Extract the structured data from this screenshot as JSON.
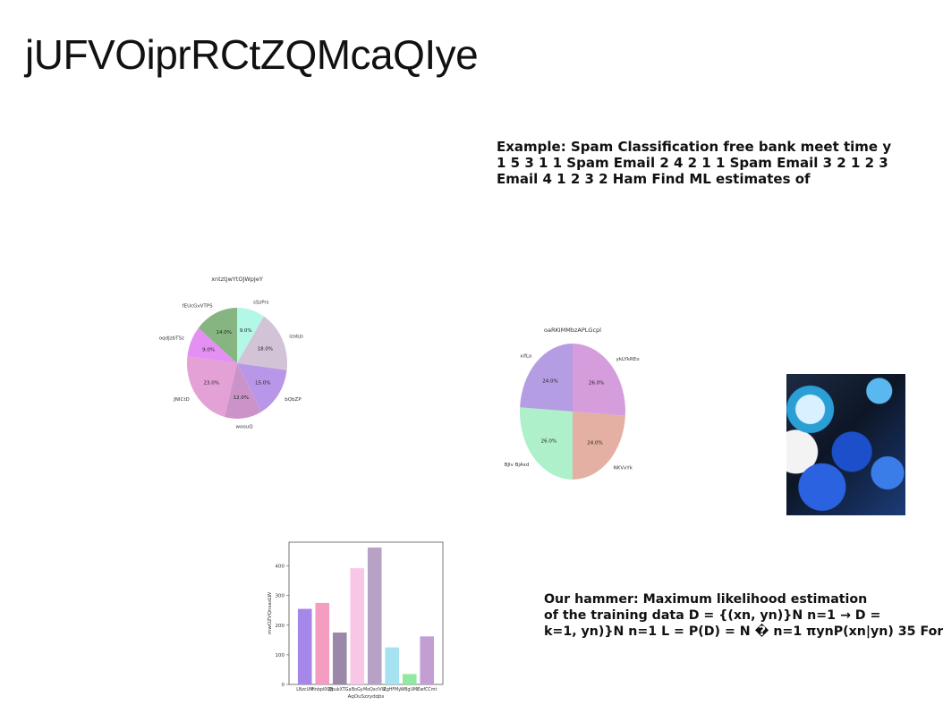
{
  "slide": {
    "title": "jUFVOiprRCtZQMcaQIye",
    "example_lines": [
      "Example: Spam Classification free bank meet time y",
      "1 5 3 1 1 Spam Email 2 4 2 1 1 Spam Email 3 2 1 2 3",
      "Email 4 1 2 3 2 Ham Find ML estimates of"
    ],
    "hammer_lines": [
      "Our hammer: Maximum likelihood estimation",
      "of the training data D = {(xn, yn)}N n=1 → D =",
      "k=1, yn)}N n=1 L = P(D) = N � n=1 πynP(xn|yn) 35 For"
    ]
  },
  "photo": {
    "icon": "blue-food-photo"
  },
  "chart_data": [
    {
      "type": "pie",
      "title": "xntztjwYtOJWpJeY",
      "slices": [
        {
          "label": "sSzPrs",
          "value": 9.0,
          "pct": "9.0%",
          "color": "#b3f7e6"
        },
        {
          "label": "izobjs",
          "value": 18.0,
          "pct": "18.0%",
          "color": "#d2c3d6"
        },
        {
          "label": "bQbZP",
          "value": 15.0,
          "pct": "15.0%",
          "color": "#b997e8"
        },
        {
          "label": "woouQ",
          "value": 12.0,
          "pct": "12.0%",
          "color": "#cc93c9"
        },
        {
          "label": "JNICtD",
          "value": 23.0,
          "pct": "23.0%",
          "color": "#e3a1d6"
        },
        {
          "label": "oqdJzbTSz",
          "value": 9.0,
          "pct": "9.0%",
          "color": "#e48ff2"
        },
        {
          "label": "fEUcGvVTPS",
          "value": 14.0,
          "pct": "14.0%",
          "color": "#86b581"
        }
      ]
    },
    {
      "type": "pie",
      "title": "oaRKIMMbzAPLGcpl",
      "slices": [
        {
          "label": "ykLYkREo",
          "value": 26.0,
          "pct": "26.0%",
          "color": "#d59ddc"
        },
        {
          "label": "NKVxYk",
          "value": 24.0,
          "pct": "24.0%",
          "color": "#e4b0a3"
        },
        {
          "label": "BJlv BjAxd",
          "value": 26.0,
          "pct": "26.0%",
          "color": "#aef0c9"
        },
        {
          "label": "xifLo",
          "value": 24.0,
          "pct": "24.0%",
          "color": "#b49de2"
        }
      ]
    },
    {
      "type": "bar",
      "xlabel": "AqOuSzzydqbs",
      "ylabel": "mwOZVQnsaxLW",
      "ylim": [
        0,
        480
      ],
      "yticks": [
        0,
        100,
        200,
        300,
        400
      ],
      "categories": [
        "LNzcUM",
        "Hnbpl0QB",
        "QpukXTGa",
        "BoGy",
        "MoQsclVW",
        "ZgHFMy",
        "WBgUMr",
        "ZwfCCmt"
      ],
      "values": [
        255,
        275,
        175,
        392,
        462,
        125,
        35,
        162
      ],
      "colors": [
        "#a487e8",
        "#f59dc0",
        "#9a87aa",
        "#f8c6e6",
        "#b7a2c6",
        "#a6e2ef",
        "#8fea9f",
        "#c39ed4"
      ]
    }
  ]
}
